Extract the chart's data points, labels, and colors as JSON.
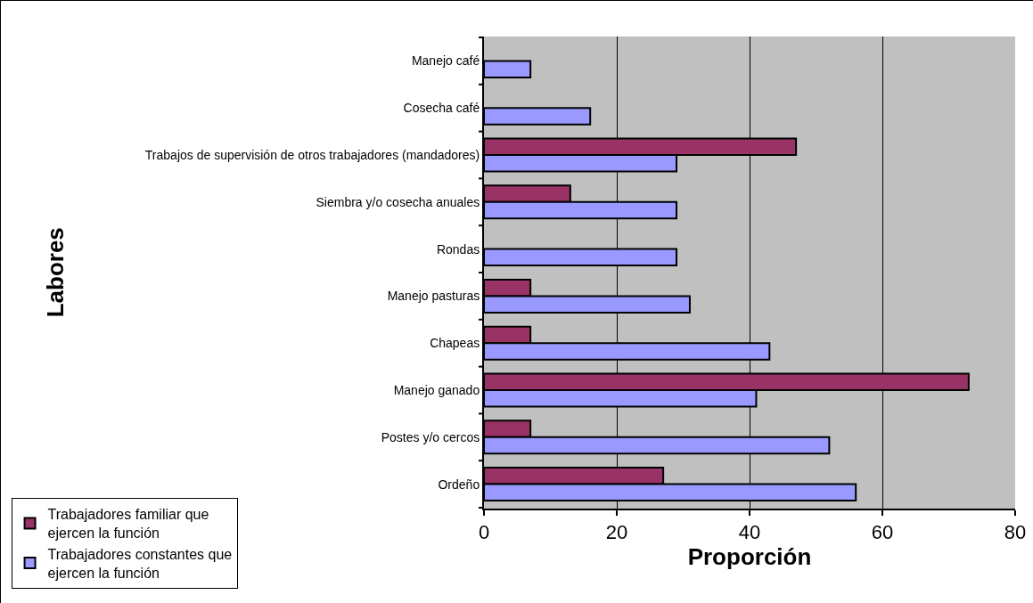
{
  "chart_data": {
    "type": "bar",
    "orientation": "horizontal",
    "xlabel": "Proporción",
    "ylabel": "Labores",
    "categories": [
      "Manejo café",
      "Cosecha café",
      "Trabajos de supervisión de otros trabajadores (mandadores)",
      "Siembra y/o cosecha anuales",
      "Rondas",
      "Manejo pasturas",
      "Chapeas",
      "Manejo ganado",
      "Postes y/o cercos",
      "Ordeño"
    ],
    "series": [
      {
        "name": "Trabajadores familiar que ejercen la función",
        "color": "#993366",
        "values": [
          null,
          null,
          47,
          13,
          null,
          7,
          7,
          73,
          7,
          27
        ]
      },
      {
        "name": "Trabajadores constantes que ejercen la función",
        "color": "#9999ff",
        "values": [
          7,
          16,
          29,
          29,
          29,
          31,
          43,
          41,
          52,
          56
        ]
      }
    ],
    "xlim": [
      0,
      80
    ],
    "xticks": [
      0,
      20,
      40,
      60,
      80
    ],
    "grid": "x",
    "legend": "bottom left"
  }
}
